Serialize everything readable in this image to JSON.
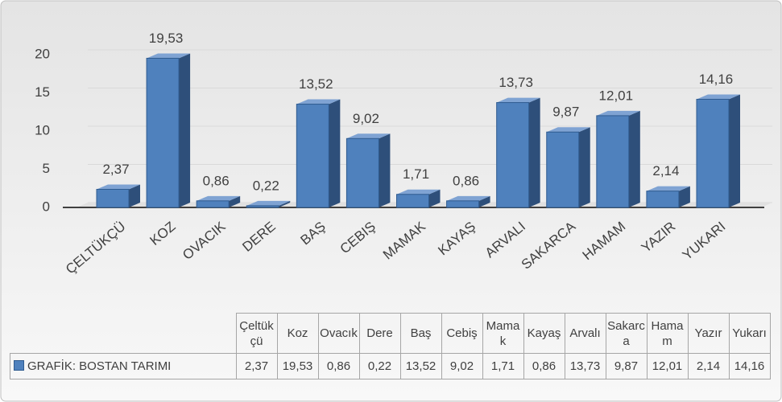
{
  "chart_data": {
    "type": "bar3d",
    "categories": [
      "ÇELTÜKÇÜ",
      "KOZ",
      "OVACIK",
      "DERE",
      "BAŞ",
      "CEBIŞ",
      "MAMAK",
      "KAYAŞ",
      "ARVALI",
      "SAKARCA",
      "HAMAM",
      "YAZIR",
      "YUKARI"
    ],
    "table_headers": [
      "Çeltükçü",
      "Koz",
      "Ovacık",
      "Dere",
      "Baş",
      "Cebiş",
      "Mamak",
      "Kayaş",
      "Arvalı",
      "Sakarca",
      "Hamam",
      "Yazır",
      "Yukarı"
    ],
    "series": [
      {
        "name": "GRAFİK: BOSTAN TARIMI",
        "color": "#4f81bd",
        "values": [
          2.37,
          19.53,
          0.86,
          0.22,
          13.52,
          9.02,
          1.71,
          0.86,
          13.73,
          9.87,
          12.01,
          2.14,
          14.16
        ],
        "value_labels": [
          "2,37",
          "19,53",
          "0,86",
          "0,22",
          "13,52",
          "9,02",
          "1,71",
          "0,86",
          "13,73",
          "9,87",
          "12,01",
          "2,14",
          "14,16"
        ]
      }
    ],
    "ylim": [
      0,
      20
    ],
    "yticks": [
      0,
      5,
      10,
      15,
      20
    ],
    "grid": true,
    "data_table": true
  }
}
